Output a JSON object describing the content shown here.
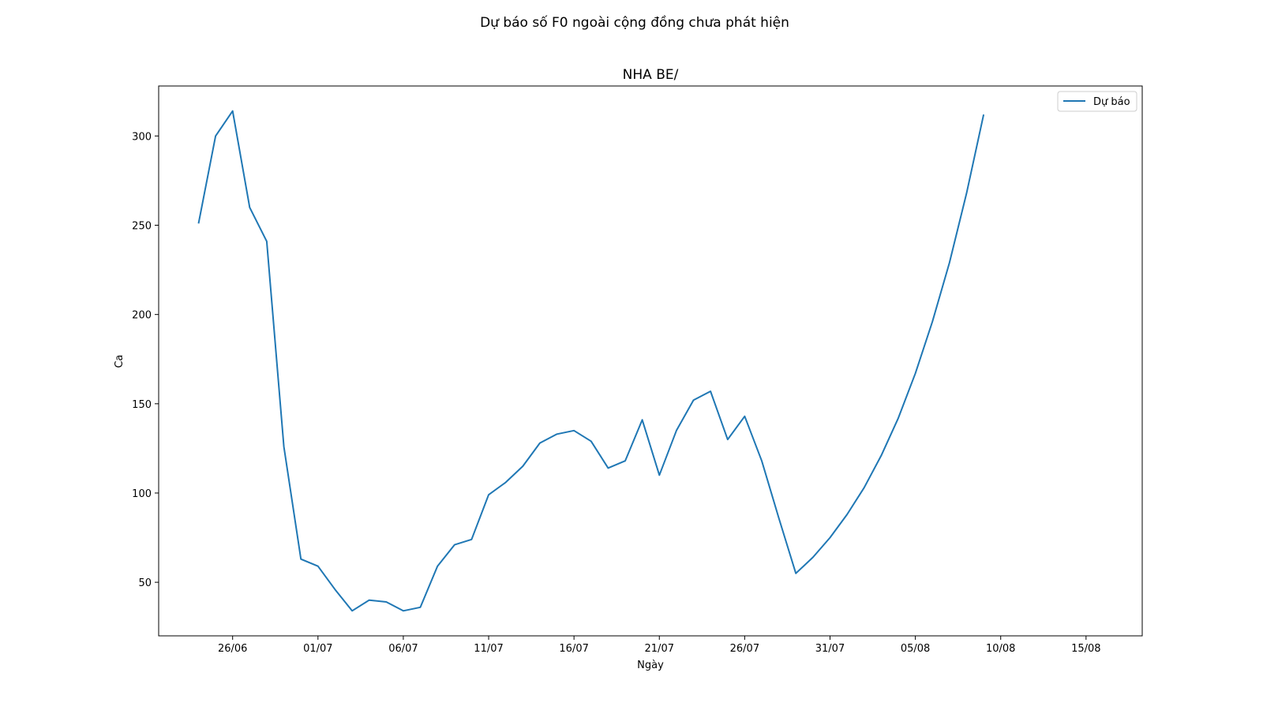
{
  "chart_data": {
    "type": "line",
    "suptitle": "Dự báo số F0 ngoài cộng đồng chưa phát hiện",
    "title": "NHA BE/",
    "xlabel": "Ngày",
    "ylabel": "Ca",
    "x_ticks": [
      {
        "date": "2021-06-26",
        "label": "26/06"
      },
      {
        "date": "2021-07-01",
        "label": "01/07"
      },
      {
        "date": "2021-07-06",
        "label": "06/07"
      },
      {
        "date": "2021-07-11",
        "label": "11/07"
      },
      {
        "date": "2021-07-16",
        "label": "16/07"
      },
      {
        "date": "2021-07-21",
        "label": "21/07"
      },
      {
        "date": "2021-07-26",
        "label": "26/07"
      },
      {
        "date": "2021-07-31",
        "label": "31/07"
      },
      {
        "date": "2021-08-05",
        "label": "05/08"
      },
      {
        "date": "2021-08-10",
        "label": "10/08"
      },
      {
        "date": "2021-08-15",
        "label": "15/08"
      }
    ],
    "y_ticks": [
      50,
      100,
      150,
      200,
      250,
      300
    ],
    "xlim": [
      "2021-06-21T16:00",
      "2021-08-18T07:00"
    ],
    "ylim": [
      20,
      328
    ],
    "grid": false,
    "legend_position": "top-right",
    "series": [
      {
        "name": "Dự báo",
        "color": "#1f77b4",
        "points": [
          [
            "2021-06-24",
            251
          ],
          [
            "2021-06-25",
            300
          ],
          [
            "2021-06-26",
            314
          ],
          [
            "2021-06-27",
            260
          ],
          [
            "2021-06-28",
            241
          ],
          [
            "2021-06-29",
            126
          ],
          [
            "2021-06-30",
            63
          ],
          [
            "2021-07-01",
            59
          ],
          [
            "2021-07-02",
            46
          ],
          [
            "2021-07-03",
            34
          ],
          [
            "2021-07-04",
            40
          ],
          [
            "2021-07-05",
            39
          ],
          [
            "2021-07-06",
            34
          ],
          [
            "2021-07-07",
            36
          ],
          [
            "2021-07-08",
            59
          ],
          [
            "2021-07-09",
            71
          ],
          [
            "2021-07-10",
            74
          ],
          [
            "2021-07-11",
            99
          ],
          [
            "2021-07-12",
            106
          ],
          [
            "2021-07-13",
            115
          ],
          [
            "2021-07-14",
            128
          ],
          [
            "2021-07-15",
            133
          ],
          [
            "2021-07-16",
            135
          ],
          [
            "2021-07-17",
            129
          ],
          [
            "2021-07-18",
            114
          ],
          [
            "2021-07-19",
            118
          ],
          [
            "2021-07-20",
            141
          ],
          [
            "2021-07-21",
            110
          ],
          [
            "2021-07-22",
            135
          ],
          [
            "2021-07-23",
            152
          ],
          [
            "2021-07-24",
            157
          ],
          [
            "2021-07-25",
            130
          ],
          [
            "2021-07-26",
            143
          ],
          [
            "2021-07-27",
            118
          ],
          [
            "2021-07-28",
            86
          ],
          [
            "2021-07-29",
            55
          ],
          [
            "2021-07-30",
            64
          ],
          [
            "2021-07-31",
            75
          ],
          [
            "2021-08-01",
            88
          ],
          [
            "2021-08-02",
            103
          ],
          [
            "2021-08-03",
            121
          ],
          [
            "2021-08-04",
            142
          ],
          [
            "2021-08-05",
            167
          ],
          [
            "2021-08-06",
            196
          ],
          [
            "2021-08-07",
            229
          ],
          [
            "2021-08-08",
            268
          ],
          [
            "2021-08-09",
            312
          ]
        ]
      }
    ]
  }
}
